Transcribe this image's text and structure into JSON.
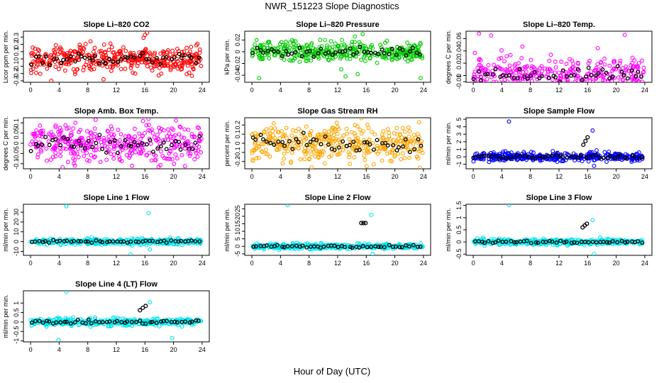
{
  "figure": {
    "title": "NWR_151223  Slope Diagnostics",
    "xlabel": "Hour of Day (UTC)"
  },
  "chart_data": [
    {
      "type": "scatter",
      "title": "Slope Li–820 CO2",
      "ylabel": "Licor ppm per min.",
      "ylim": [
        -0.32,
        0.38
      ],
      "yticks": [
        -0.3,
        -0.2,
        -0.1,
        0.0,
        0.1,
        0.2,
        0.3
      ],
      "xlim": [
        -1,
        25
      ],
      "xticks": [
        0,
        4,
        8,
        12,
        16,
        20,
        24
      ],
      "color": "#ff0000",
      "spread": 0.09,
      "outliers": [
        {
          "x": 16.0,
          "y": 0.33
        },
        {
          "x": 16.3,
          "y": 0.36
        },
        {
          "x": 15.8,
          "y": 0.29
        },
        {
          "x": 10.2,
          "y": -0.28
        },
        {
          "x": 2.9,
          "y": -0.3
        }
      ],
      "black_outliers": []
    },
    {
      "type": "scatter",
      "title": "Slope Li–820 Pressure",
      "ylabel": "kPa per min.",
      "ylim": [
        -0.052,
        0.035
      ],
      "yticks": [
        -0.04,
        -0.02,
        0.0,
        0.02
      ],
      "xlim": [
        -1,
        25
      ],
      "xticks": [
        0,
        4,
        8,
        12,
        16,
        20,
        24
      ],
      "color": "#00cc00",
      "spread": 0.008,
      "outliers": [
        {
          "x": 15.5,
          "y": 0.03
        },
        {
          "x": 14.4,
          "y": 0.026
        },
        {
          "x": 12.5,
          "y": -0.03
        },
        {
          "x": 13.1,
          "y": -0.042
        },
        {
          "x": 14.8,
          "y": -0.038
        },
        {
          "x": 23.6,
          "y": -0.045
        },
        {
          "x": 1.0,
          "y": -0.045
        }
      ],
      "black_outliers": []
    },
    {
      "type": "scatter",
      "title": "Slope Li–820 Temp.",
      "ylabel": "degrees C per min.",
      "ylim": [
        -0.011,
        0.072
      ],
      "yticks": [
        -0.01,
        0.0,
        0.02,
        0.04,
        0.06
      ],
      "xlim": [
        -1,
        25
      ],
      "xticks": [
        0,
        4,
        8,
        12,
        16,
        20,
        24
      ],
      "color": "#ff00ff",
      "spread": 0.016,
      "outliers": [
        {
          "x": 0.8,
          "y": 0.068
        },
        {
          "x": 2.5,
          "y": 0.065
        },
        {
          "x": 4.8,
          "y": -0.01
        },
        {
          "x": 5.8,
          "y": -0.01
        },
        {
          "x": 21.2,
          "y": 0.066
        }
      ],
      "black_outliers": []
    },
    {
      "type": "scatter",
      "title": "Slope Amb. Box Temp.",
      "ylabel": "degrees C per min.",
      "ylim": [
        -0.125,
        0.125
      ],
      "yticks": [
        -0.1,
        -0.05,
        0.0,
        0.05,
        0.1
      ],
      "xlim": [
        -1,
        25
      ],
      "xticks": [
        0,
        4,
        8,
        12,
        16,
        20,
        24
      ],
      "color": "#ff00ff",
      "spread": 0.045,
      "outliers": [
        {
          "x": 16.5,
          "y": 0.12
        },
        {
          "x": 9.1,
          "y": 0.115
        },
        {
          "x": 14.2,
          "y": -0.11
        },
        {
          "x": 17.9,
          "y": -0.115
        }
      ],
      "black_outliers": []
    },
    {
      "type": "scatter",
      "title": "Slope Gas Stream RH",
      "ylabel": "percent per min.",
      "ylim": [
        -0.28,
        0.28
      ],
      "yticks": [
        -0.2,
        -0.1,
        0.0,
        0.1,
        0.2
      ],
      "xlim": [
        -1,
        25
      ],
      "xticks": [
        0,
        4,
        8,
        12,
        16,
        20,
        24
      ],
      "color": "#ffa500",
      "spread": 0.1,
      "outliers": [
        {
          "x": 23.5,
          "y": -0.27
        },
        {
          "x": 4.3,
          "y": -0.22
        }
      ],
      "black_outliers": []
    },
    {
      "type": "scatter",
      "title": "Slope Sample Flow",
      "ylabel": "ml/min per min.",
      "ylim": [
        -1.6,
        5.2
      ],
      "yticks": [
        -1,
        0,
        1,
        2,
        3,
        4,
        5
      ],
      "xlim": [
        -1,
        25
      ],
      "xticks": [
        0,
        4,
        8,
        12,
        16,
        20,
        24
      ],
      "color": "#0000ff",
      "spread": 0.3,
      "outliers": [
        {
          "x": 5.0,
          "y": 4.7
        },
        {
          "x": 16.7,
          "y": 3.5
        },
        {
          "x": 16.9,
          "y": -1.2
        }
      ],
      "black_outliers": [
        {
          "x": 15.4,
          "y": 1.6
        },
        {
          "x": 15.7,
          "y": 2.1
        },
        {
          "x": 16.0,
          "y": 2.6
        }
      ]
    },
    {
      "type": "scatter",
      "title": "Slope Line 1 Flow",
      "ylabel": "ml/min per min.",
      "ylim": [
        -14,
        38
      ],
      "yticks": [
        -10,
        0,
        10,
        20,
        30
      ],
      "xlim": [
        -1,
        25
      ],
      "xticks": [
        0,
        4,
        8,
        12,
        16,
        20,
        24
      ],
      "color": "#00e5ee",
      "spread": 1.5,
      "outliers": [
        {
          "x": 5.0,
          "y": 36
        },
        {
          "x": 16.5,
          "y": 29
        },
        {
          "x": 16.7,
          "y": -8
        },
        {
          "x": 14.0,
          "y": -13
        }
      ],
      "black_outliers": []
    },
    {
      "type": "scatter",
      "title": "Slope Line 2 Flow",
      "ylabel": "ml/min per min.",
      "ylim": [
        -6,
        28
      ],
      "yticks": [
        -5,
        0,
        5,
        10,
        15,
        20,
        25
      ],
      "xlim": [
        -1,
        25
      ],
      "xticks": [
        0,
        4,
        8,
        12,
        16,
        20,
        24
      ],
      "color": "#00e5ee",
      "spread": 0.9,
      "outliers": [
        {
          "x": 5.0,
          "y": 27.5
        },
        {
          "x": 16.7,
          "y": 21
        },
        {
          "x": 16.9,
          "y": -5
        }
      ],
      "black_outliers": [
        {
          "x": 15.3,
          "y": 15.5
        },
        {
          "x": 15.6,
          "y": 15.5
        },
        {
          "x": 15.9,
          "y": 15.5
        }
      ]
    },
    {
      "type": "scatter",
      "title": "Slope Line 3 Flow",
      "ylabel": "ml/min per min.",
      "ylim": [
        -0.55,
        1.55
      ],
      "yticks": [
        -0.5,
        0.0,
        0.5,
        1.0,
        1.5
      ],
      "xlim": [
        -1,
        25
      ],
      "xticks": [
        0,
        4,
        8,
        12,
        16,
        20,
        24
      ],
      "color": "#00e5ee",
      "spread": 0.06,
      "outliers": [
        {
          "x": 5.0,
          "y": 1.52
        },
        {
          "x": 16.7,
          "y": 0.9
        },
        {
          "x": 16.9,
          "y": -0.5
        }
      ],
      "black_outliers": [
        {
          "x": 15.3,
          "y": 0.6
        },
        {
          "x": 15.6,
          "y": 0.68
        },
        {
          "x": 15.9,
          "y": 0.75
        }
      ]
    },
    {
      "type": "scatter",
      "title": "Slope Line 4 (LT) Flow",
      "ylabel": "ml/min per min.",
      "ylim": [
        -1.05,
        1.65
      ],
      "yticks": [
        -1.0,
        -0.5,
        0.0,
        0.5,
        1.0
      ],
      "xlim": [
        -1,
        25
      ],
      "xticks": [
        0,
        4,
        8,
        12,
        16,
        20,
        24
      ],
      "color": "#00e5ee",
      "spread": 0.1,
      "outliers": [
        {
          "x": 5.0,
          "y": 1.6
        },
        {
          "x": 16.7,
          "y": 1.05
        },
        {
          "x": 3.9,
          "y": -0.95
        },
        {
          "x": 19.8,
          "y": -0.85
        }
      ],
      "black_outliers": [
        {
          "x": 15.3,
          "y": 0.62
        },
        {
          "x": 15.7,
          "y": 0.75
        },
        {
          "x": 16.1,
          "y": 0.85
        }
      ]
    }
  ]
}
